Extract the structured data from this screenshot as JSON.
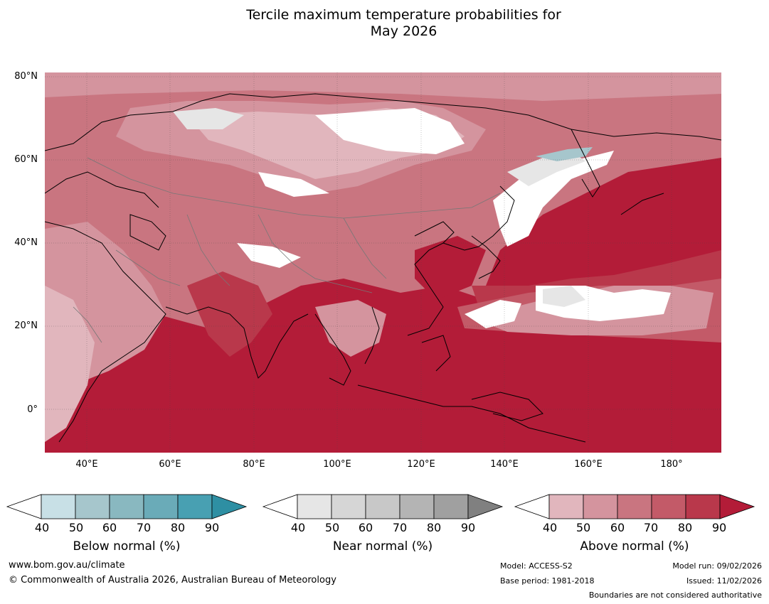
{
  "title_line1": "Tercile maximum temperature probabilities for",
  "title_line2": "May 2026",
  "map": {
    "lat_labels": [
      "80°N",
      "60°N",
      "40°N",
      "20°N",
      "0°"
    ],
    "lon_labels": [
      "40°E",
      "60°E",
      "80°E",
      "100°E",
      "120°E",
      "140°E",
      "160°E",
      "180°"
    ],
    "extent": {
      "lon": [
        30,
        192
      ],
      "lat": [
        -10,
        81
      ]
    }
  },
  "colorbars": [
    {
      "title": "Below normal (%)",
      "ticks": [
        "40",
        "50",
        "60",
        "70",
        "80",
        "90"
      ],
      "colors": [
        "#ffffff",
        "#c8e0e6",
        "#a6c6cc",
        "#89b8c0",
        "#6aabb8",
        "#48a0b2",
        "#2e8fa3"
      ]
    },
    {
      "title": "Near normal (%)",
      "ticks": [
        "40",
        "50",
        "60",
        "70",
        "80",
        "90"
      ],
      "colors": [
        "#ffffff",
        "#e6e6e6",
        "#d6d6d6",
        "#c8c8c8",
        "#b4b4b4",
        "#a0a0a0",
        "#808080"
      ]
    },
    {
      "title": "Above normal (%)",
      "ticks": [
        "40",
        "50",
        "60",
        "70",
        "80",
        "90"
      ],
      "colors": [
        "#ffffff",
        "#e1b6bd",
        "#d4949e",
        "#c97580",
        "#c35a68",
        "#b9384b",
        "#b31c38"
      ]
    }
  ],
  "footer": {
    "website": "www.bom.gov.au/climate",
    "copyright": "© Commonwealth of Australia 2026, Australian Bureau of Meteorology",
    "model": "Model: ACCESS-S2",
    "base_period": "Base period: 1981-2018",
    "model_run": "Model run: 09/02/2026",
    "issued": "Issued: 11/02/2026",
    "disclaimer": "Boundaries are not considered authoritative"
  }
}
